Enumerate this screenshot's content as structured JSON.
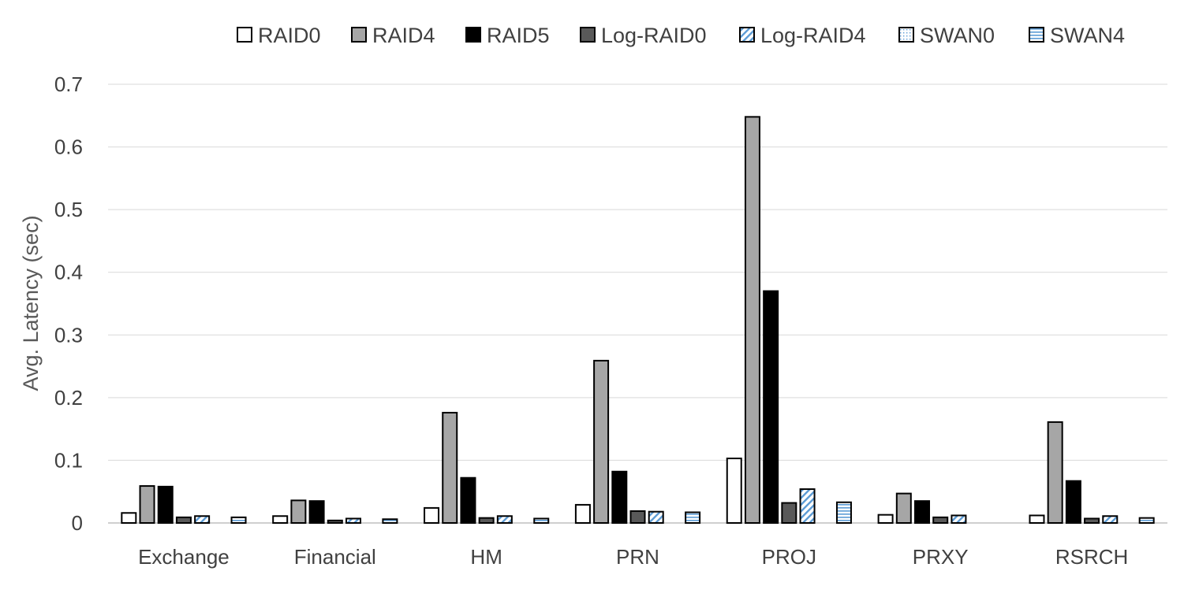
{
  "chart_data": {
    "type": "bar",
    "title": "",
    "xlabel": "",
    "ylabel": "Avg. Latency (sec)",
    "ylim": [
      0,
      0.7
    ],
    "yticks": [
      0,
      0.1,
      0.2,
      0.3,
      0.4,
      0.5,
      0.6,
      0.7
    ],
    "ytick_labels": [
      "0",
      "0.1",
      "0.2",
      "0.3",
      "0.4",
      "0.5",
      "0.6",
      "0.7"
    ],
    "grid": true,
    "legend_position": "top",
    "categories": [
      "Exchange",
      "Financial",
      "HM",
      "PRN",
      "PROJ",
      "PRXY",
      "RSRCH"
    ],
    "series": [
      {
        "name": "RAID0",
        "values": [
          0.016,
          0.011,
          0.024,
          0.029,
          0.103,
          0.013,
          0.012
        ],
        "fill": "#ffffff",
        "pattern": "solid"
      },
      {
        "name": "RAID4",
        "values": [
          0.059,
          0.036,
          0.176,
          0.259,
          0.648,
          0.047,
          0.161
        ],
        "fill": "#a6a6a6",
        "pattern": "solid"
      },
      {
        "name": "RAID5",
        "values": [
          0.058,
          0.035,
          0.072,
          0.082,
          0.37,
          0.035,
          0.067
        ],
        "fill": "#000000",
        "pattern": "solid"
      },
      {
        "name": "Log-RAID0",
        "values": [
          0.009,
          0.004,
          0.008,
          0.019,
          0.032,
          0.009,
          0.007
        ],
        "fill": "#595959",
        "pattern": "solid"
      },
      {
        "name": "Log-RAID4",
        "values": [
          0.011,
          0.007,
          0.011,
          0.018,
          0.054,
          0.012,
          0.011
        ],
        "fill": "#5b9bd5",
        "pattern": "diagonal"
      },
      {
        "name": "SWAN0",
        "values": [
          0,
          0,
          0,
          0,
          0,
          0,
          0
        ],
        "fill": "#5b9bd5",
        "pattern": "dots"
      },
      {
        "name": "SWAN4",
        "values": [
          0.009,
          0.006,
          0.007,
          0.017,
          0.033,
          0,
          0.008
        ],
        "fill": "#5b9bd5",
        "pattern": "horizontal"
      }
    ]
  }
}
